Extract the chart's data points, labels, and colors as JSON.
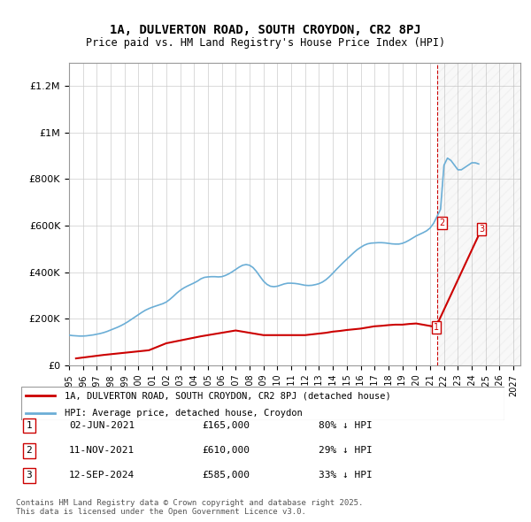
{
  "title": "1A, DULVERTON ROAD, SOUTH CROYDON, CR2 8PJ",
  "subtitle": "Price paid vs. HM Land Registry's House Price Index (HPI)",
  "ylabel_ticks": [
    "£0",
    "£200K",
    "£400K",
    "£600K",
    "£800K",
    "£1M",
    "£1.2M"
  ],
  "ytick_values": [
    0,
    200000,
    400000,
    600000,
    800000,
    1000000,
    1200000
  ],
  "ylim": [
    0,
    1300000
  ],
  "xlim_start": 1995.0,
  "xlim_end": 2027.5,
  "hpi_color": "#6baed6",
  "price_color": "#cc0000",
  "dashed_color": "#cc0000",
  "grid_color": "#cccccc",
  "background_color": "#ffffff",
  "annotation_box_color": "#cc0000",
  "legend_label_red": "1A, DULVERTON ROAD, SOUTH CROYDON, CR2 8PJ (detached house)",
  "legend_label_blue": "HPI: Average price, detached house, Croydon",
  "transactions": [
    {
      "num": 1,
      "date": "02-JUN-2021",
      "price": 165000,
      "rel": "80% ↓ HPI",
      "year": 2021.42
    },
    {
      "num": 2,
      "date": "11-NOV-2021",
      "price": 610000,
      "rel": "29% ↓ HPI",
      "year": 2021.86
    },
    {
      "num": 3,
      "date": "12-SEP-2024",
      "price": 585000,
      "rel": "33% ↓ HPI",
      "year": 2024.7
    }
  ],
  "footer": "Contains HM Land Registry data © Crown copyright and database right 2025.\nThis data is licensed under the Open Government Licence v3.0.",
  "hpi_data_x": [
    1995.0,
    1995.25,
    1995.5,
    1995.75,
    1996.0,
    1996.25,
    1996.5,
    1996.75,
    1997.0,
    1997.25,
    1997.5,
    1997.75,
    1998.0,
    1998.25,
    1998.5,
    1998.75,
    1999.0,
    1999.25,
    1999.5,
    1999.75,
    2000.0,
    2000.25,
    2000.5,
    2000.75,
    2001.0,
    2001.25,
    2001.5,
    2001.75,
    2002.0,
    2002.25,
    2002.5,
    2002.75,
    2003.0,
    2003.25,
    2003.5,
    2003.75,
    2004.0,
    2004.25,
    2004.5,
    2004.75,
    2005.0,
    2005.25,
    2005.5,
    2005.75,
    2006.0,
    2006.25,
    2006.5,
    2006.75,
    2007.0,
    2007.25,
    2007.5,
    2007.75,
    2008.0,
    2008.25,
    2008.5,
    2008.75,
    2009.0,
    2009.25,
    2009.5,
    2009.75,
    2010.0,
    2010.25,
    2010.5,
    2010.75,
    2011.0,
    2011.25,
    2011.5,
    2011.75,
    2012.0,
    2012.25,
    2012.5,
    2012.75,
    2013.0,
    2013.25,
    2013.5,
    2013.75,
    2014.0,
    2014.25,
    2014.5,
    2014.75,
    2015.0,
    2015.25,
    2015.5,
    2015.75,
    2016.0,
    2016.25,
    2016.5,
    2016.75,
    2017.0,
    2017.25,
    2017.5,
    2017.75,
    2018.0,
    2018.25,
    2018.5,
    2018.75,
    2019.0,
    2019.25,
    2019.5,
    2019.75,
    2020.0,
    2020.25,
    2020.5,
    2020.75,
    2021.0,
    2021.25,
    2021.5,
    2021.75,
    2022.0,
    2022.25,
    2022.5,
    2022.75,
    2023.0,
    2023.25,
    2023.5,
    2023.75,
    2024.0,
    2024.25,
    2024.5
  ],
  "hpi_data_y": [
    130000,
    128000,
    127000,
    126000,
    126000,
    127000,
    129000,
    131000,
    134000,
    137000,
    141000,
    146000,
    152000,
    158000,
    164000,
    171000,
    179000,
    188000,
    198000,
    208000,
    218000,
    228000,
    237000,
    244000,
    250000,
    255000,
    260000,
    265000,
    272000,
    283000,
    296000,
    310000,
    322000,
    332000,
    340000,
    347000,
    354000,
    362000,
    372000,
    378000,
    380000,
    381000,
    381000,
    380000,
    381000,
    386000,
    393000,
    402000,
    412000,
    422000,
    430000,
    433000,
    430000,
    420000,
    403000,
    382000,
    362000,
    348000,
    340000,
    338000,
    340000,
    345000,
    350000,
    353000,
    353000,
    352000,
    350000,
    347000,
    344000,
    343000,
    344000,
    347000,
    351000,
    358000,
    368000,
    381000,
    396000,
    412000,
    427000,
    442000,
    456000,
    470000,
    484000,
    497000,
    507000,
    516000,
    522000,
    525000,
    526000,
    527000,
    527000,
    526000,
    524000,
    522000,
    521000,
    521000,
    524000,
    530000,
    538000,
    547000,
    556000,
    563000,
    570000,
    578000,
    590000,
    610000,
    640000,
    670000,
    860000,
    890000,
    880000,
    860000,
    840000,
    840000,
    850000,
    860000,
    870000,
    870000,
    865000
  ],
  "price_data_x": [
    1995.5,
    1997.5,
    2000.75,
    2002.0,
    2004.5,
    2007.0,
    2009.0,
    2010.0,
    2011.0,
    2012.0,
    2013.5,
    2014.0,
    2014.5,
    2015.0,
    2015.5,
    2016.0,
    2016.5,
    2017.0,
    2017.5,
    2018.0,
    2018.5,
    2019.0,
    2019.5,
    2020.0,
    2021.42,
    2024.7
  ],
  "price_data_y": [
    30000,
    45000,
    65000,
    95000,
    125000,
    150000,
    130000,
    130000,
    130000,
    130000,
    140000,
    145000,
    148000,
    152000,
    155000,
    158000,
    163000,
    168000,
    170000,
    173000,
    175000,
    175000,
    178000,
    180000,
    165000,
    585000
  ]
}
